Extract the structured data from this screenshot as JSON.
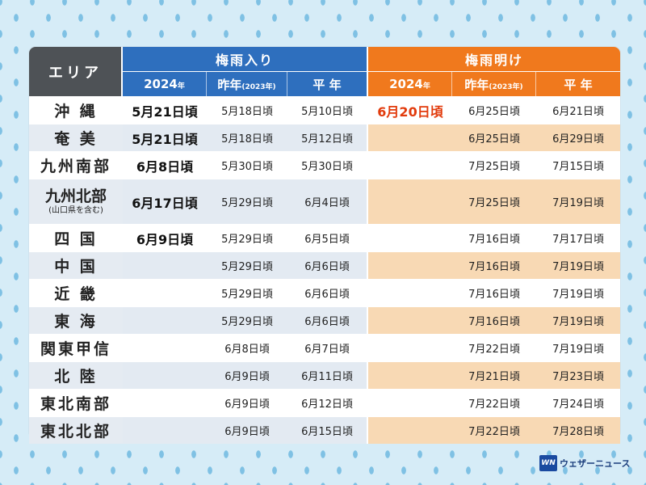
{
  "header": {
    "area": "エリア",
    "tsuyu_iri": "梅雨入り",
    "tsuyu_ake": "梅雨明け",
    "sub": {
      "year_big": "2024",
      "year_suffix": "年",
      "last_year": "昨年",
      "last_year_note": "(2023年)",
      "normal": "平 年"
    }
  },
  "rows": [
    {
      "area": "沖 縄",
      "in_2024": "5月21日頃",
      "in_last": "5月18日頃",
      "in_normal": "5月10日頃",
      "out_2024": "6月20日頃",
      "out_last": "6月25日頃",
      "out_normal": "6月21日頃"
    },
    {
      "area": "奄 美",
      "in_2024": "5月21日頃",
      "in_last": "5月18日頃",
      "in_normal": "5月12日頃",
      "out_2024": "",
      "out_last": "6月25日頃",
      "out_normal": "6月29日頃"
    },
    {
      "area": "九州南部",
      "in_2024": "6月8日頃",
      "in_last": "5月30日頃",
      "in_normal": "5月30日頃",
      "out_2024": "",
      "out_last": "7月25日頃",
      "out_normal": "7月15日頃"
    },
    {
      "area": "九州北部",
      "area_note": "(山口県を含む)",
      "in_2024": "6月17日頃",
      "in_last": "5月29日頃",
      "in_normal": "6月4日頃",
      "out_2024": "",
      "out_last": "7月25日頃",
      "out_normal": "7月19日頃"
    },
    {
      "area": "四 国",
      "in_2024": "6月9日頃",
      "in_last": "5月29日頃",
      "in_normal": "6月5日頃",
      "out_2024": "",
      "out_last": "7月16日頃",
      "out_normal": "7月17日頃"
    },
    {
      "area": "中 国",
      "in_2024": "",
      "in_last": "5月29日頃",
      "in_normal": "6月6日頃",
      "out_2024": "",
      "out_last": "7月16日頃",
      "out_normal": "7月19日頃"
    },
    {
      "area": "近 畿",
      "in_2024": "",
      "in_last": "5月29日頃",
      "in_normal": "6月6日頃",
      "out_2024": "",
      "out_last": "7月16日頃",
      "out_normal": "7月19日頃"
    },
    {
      "area": "東 海",
      "in_2024": "",
      "in_last": "5月29日頃",
      "in_normal": "6月6日頃",
      "out_2024": "",
      "out_last": "7月16日頃",
      "out_normal": "7月19日頃"
    },
    {
      "area": "関東甲信",
      "in_2024": "",
      "in_last": "6月8日頃",
      "in_normal": "6月7日頃",
      "out_2024": "",
      "out_last": "7月22日頃",
      "out_normal": "7月19日頃"
    },
    {
      "area": "北 陸",
      "in_2024": "",
      "in_last": "6月9日頃",
      "in_normal": "6月11日頃",
      "out_2024": "",
      "out_last": "7月21日頃",
      "out_normal": "7月23日頃"
    },
    {
      "area": "東北南部",
      "in_2024": "",
      "in_last": "6月9日頃",
      "in_normal": "6月12日頃",
      "out_2024": "",
      "out_last": "7月22日頃",
      "out_normal": "7月24日頃"
    },
    {
      "area": "東北北部",
      "in_2024": "",
      "in_last": "6月9日頃",
      "in_normal": "6月15日頃",
      "out_2024": "",
      "out_last": "7月22日頃",
      "out_normal": "7月28日頃"
    }
  ],
  "logo": {
    "mark": "WN",
    "text": "ウェザーニュース"
  },
  "colors": {
    "iri": "#2e6fbe",
    "ake": "#f0791d",
    "area_head": "#4e5256",
    "highlight_red": "#e23b0c",
    "ake_shade": "#f8d9b4",
    "iri_shade": "#e3eaf2"
  }
}
